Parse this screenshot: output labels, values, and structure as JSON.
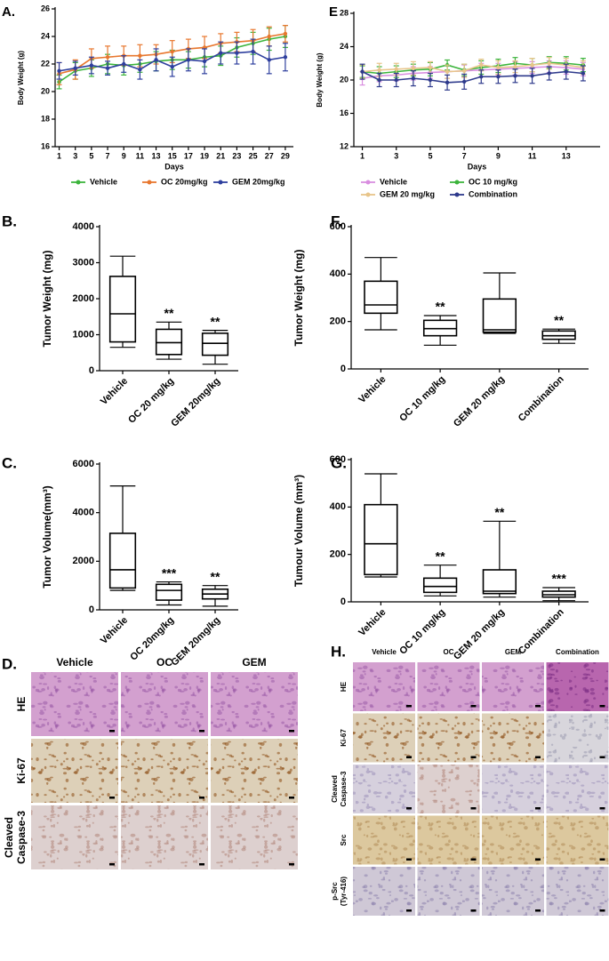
{
  "chart_data": [
    {
      "type": "line",
      "panel": "A.",
      "xlabel": "Days",
      "ylabel": "Body Weight (g)",
      "legend": "bottom",
      "x": [
        1,
        3,
        5,
        7,
        9,
        11,
        13,
        15,
        17,
        19,
        21,
        23,
        25,
        27,
        29
      ],
      "xlim": [
        0.5,
        30
      ],
      "xticks": [
        1,
        3,
        5,
        7,
        9,
        11,
        13,
        15,
        17,
        19,
        21,
        23,
        25,
        27,
        29
      ],
      "ylim": [
        16,
        26
      ],
      "yticks": [
        16,
        18,
        20,
        22,
        24,
        26
      ],
      "series": [
        {
          "name": "Vehicle",
          "color": "#3cb43c",
          "values": [
            20.7,
            21.5,
            21.7,
            22.0,
            21.9,
            22.0,
            22.2,
            22.3,
            22.3,
            22.5,
            22.6,
            23.2,
            23.5,
            23.8,
            24.0
          ],
          "errors": [
            0.5,
            0.6,
            0.6,
            0.7,
            0.7,
            0.6,
            0.7,
            0.7,
            0.6,
            0.7,
            0.7,
            0.7,
            0.8,
            0.8,
            0.8
          ]
        },
        {
          "name": "OC 20mg/kg",
          "color": "#e8772e",
          "values": [
            21.3,
            21.6,
            22.4,
            22.5,
            22.6,
            22.6,
            22.7,
            22.9,
            23.1,
            23.2,
            23.5,
            23.6,
            23.7,
            24.0,
            24.2
          ],
          "errors": [
            0.8,
            0.7,
            0.7,
            0.8,
            0.7,
            0.8,
            0.7,
            0.8,
            0.7,
            0.8,
            0.7,
            0.7,
            0.8,
            0.7,
            0.6
          ]
        },
        {
          "name": "GEM 20mg/kg",
          "color": "#2e3f9e",
          "values": [
            21.5,
            21.7,
            21.9,
            21.7,
            22.0,
            21.6,
            22.3,
            21.8,
            22.3,
            22.2,
            22.8,
            22.8,
            22.9,
            22.3,
            22.5
          ],
          "errors": [
            0.6,
            0.5,
            0.6,
            0.5,
            0.6,
            0.7,
            0.8,
            0.7,
            0.8,
            0.9,
            0.8,
            0.8,
            0.9,
            1.0,
            1.0
          ]
        }
      ]
    },
    {
      "type": "line",
      "panel": "E",
      "xlabel": "Days",
      "ylabel": "Body Weight (g)",
      "legend": "bottom",
      "x": [
        1,
        2,
        3,
        4,
        5,
        6,
        7,
        8,
        9,
        10,
        11,
        12,
        13,
        14
      ],
      "xlim": [
        0.5,
        15
      ],
      "xticks": [
        1,
        3,
        5,
        7,
        9,
        11,
        13
      ],
      "ylim": [
        12,
        28
      ],
      "yticks": [
        12,
        16,
        20,
        24,
        28
      ],
      "series": [
        {
          "name": "Vehicle",
          "color": "#d98ee0",
          "values": [
            20.2,
            20.5,
            20.6,
            20.8,
            20.9,
            21.0,
            21.1,
            21.2,
            21.3,
            21.4,
            21.5,
            21.6,
            21.5,
            21.3
          ],
          "errors": [
            0.8,
            0.7,
            0.7,
            0.8,
            0.7,
            0.8,
            0.7,
            0.8,
            0.7,
            0.8,
            0.7,
            0.7,
            0.8,
            0.8
          ]
        },
        {
          "name": "OC 10 mg/kg",
          "color": "#3cb43c",
          "values": [
            21.0,
            20.8,
            21.0,
            21.2,
            21.3,
            21.8,
            21.2,
            21.5,
            21.7,
            22.0,
            21.8,
            22.1,
            22.0,
            21.8
          ],
          "errors": [
            0.7,
            0.8,
            0.7,
            0.7,
            0.8,
            0.6,
            0.7,
            0.8,
            0.8,
            0.7,
            0.8,
            0.7,
            0.8,
            0.8
          ]
        },
        {
          "name": "GEM 20 mg/kg",
          "color": "#e8c58a",
          "values": [
            21.0,
            21.2,
            21.3,
            21.4,
            21.5,
            21.0,
            21.1,
            21.8,
            21.5,
            21.6,
            21.8,
            22.0,
            21.8,
            21.5
          ],
          "errors": [
            0.8,
            0.8,
            0.7,
            0.8,
            0.7,
            0.8,
            0.8,
            0.7,
            0.8,
            0.7,
            0.8,
            0.7,
            0.8,
            0.8
          ]
        },
        {
          "name": "Combination",
          "color": "#2e3a8c",
          "values": [
            21.0,
            20.0,
            20.0,
            20.2,
            20.0,
            19.7,
            19.8,
            20.4,
            20.4,
            20.5,
            20.5,
            20.8,
            21.0,
            20.8
          ],
          "errors": [
            0.9,
            0.8,
            0.8,
            0.9,
            0.8,
            0.9,
            0.9,
            0.8,
            0.8,
            0.8,
            0.9,
            0.8,
            0.9,
            0.9
          ]
        }
      ]
    },
    {
      "type": "box",
      "panel": "B.",
      "ylabel": "Tumor Weight (mg)",
      "categories": [
        "Vehicle",
        "OC 20 mg/kg",
        "GEM 20mg/kg"
      ],
      "ylim": [
        0,
        4000
      ],
      "yticks": [
        0,
        1000,
        2000,
        3000,
        4000
      ],
      "min": [
        650,
        320,
        180
      ],
      "q1": [
        800,
        450,
        430
      ],
      "median": [
        1580,
        780,
        760
      ],
      "q3": [
        2620,
        1150,
        1040
      ],
      "max": [
        3180,
        1350,
        1120
      ],
      "annotations": [
        null,
        "**",
        "**"
      ]
    },
    {
      "type": "box",
      "panel": "F.",
      "ylabel": "Tumor Weight (mg)",
      "categories": [
        "Vehicle",
        "OC 10 mg/kg",
        "GEM 20 mg/kg",
        "Combination"
      ],
      "ylim": [
        0,
        600
      ],
      "yticks": [
        0,
        200,
        400,
        600
      ],
      "min": [
        165,
        100,
        150,
        108
      ],
      "q1": [
        235,
        140,
        155,
        125
      ],
      "median": [
        270,
        170,
        165,
        140
      ],
      "q3": [
        370,
        205,
        295,
        160
      ],
      "max": [
        470,
        225,
        405,
        168
      ],
      "annotations": [
        null,
        "**",
        null,
        "**"
      ]
    },
    {
      "type": "box",
      "panel": "C.",
      "ylabel": "Tumor Volume(mm³)",
      "categories": [
        "Vehicle",
        "OC 20mg/kg",
        "GEM 20mg/kg"
      ],
      "ylim": [
        0,
        6000
      ],
      "yticks": [
        0,
        2000,
        4000,
        6000
      ],
      "min": [
        800,
        200,
        150
      ],
      "q1": [
        900,
        400,
        450
      ],
      "median": [
        1650,
        800,
        650
      ],
      "q3": [
        3150,
        1050,
        850
      ],
      "max": [
        5100,
        1150,
        1000
      ],
      "annotations": [
        null,
        "***",
        "**"
      ]
    },
    {
      "type": "box",
      "panel": "G.",
      "ylabel": "Tumour Volume (mm³)",
      "categories": [
        "Vehicle",
        "OC 10 mg/kg",
        "GEM 20 mg/kg",
        "Combination"
      ],
      "ylim": [
        0,
        600
      ],
      "yticks": [
        0,
        200,
        400,
        600
      ],
      "min": [
        105,
        25,
        20,
        5
      ],
      "q1": [
        115,
        40,
        35,
        20
      ],
      "median": [
        245,
        65,
        45,
        30
      ],
      "q3": [
        410,
        100,
        135,
        45
      ],
      "max": [
        540,
        155,
        340,
        60
      ],
      "annotations": [
        null,
        "**",
        "**",
        "***"
      ]
    }
  ],
  "image_panels": [
    {
      "label": "D.",
      "columns": [
        "Vehicle",
        "OC",
        "GEM"
      ],
      "rows": [
        "HE",
        "Ki-67",
        [
          "Cleaved",
          "Caspase-3"
        ]
      ]
    },
    {
      "label": "H.",
      "columns": [
        "Vehicle",
        "OC",
        "GEM",
        "Combination"
      ],
      "rows": [
        "HE",
        "Ki-67",
        [
          "Cleaved",
          "Caspase-3"
        ],
        "Src",
        [
          "p-Src",
          "(Tyr-416)"
        ]
      ]
    }
  ]
}
